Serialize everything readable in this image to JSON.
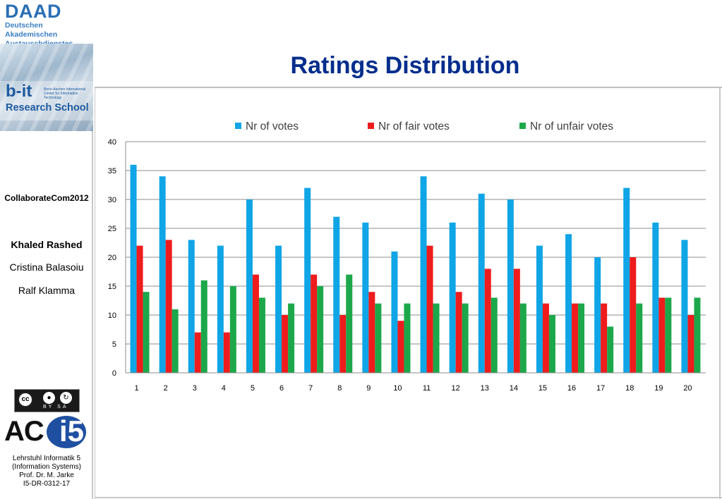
{
  "header": {
    "title": "Ratings Distribution"
  },
  "sidebar": {
    "daad_title": "DAAD",
    "daad_subtitle_1": "Deutschen Akademischen",
    "daad_subtitle_2": "Austauschdienstes",
    "bit_logo": "b-it",
    "bit_small_text": "Bonn-Aachen International Center for Information Technology",
    "research_school": "Research School",
    "conference": "CollaborateCom2012",
    "authors": [
      "Khaled Rashed",
      "Cristina Balasoiu",
      "Ralf Klamma"
    ],
    "license_logo": "cc",
    "license_label": "BY SA",
    "lab_logo_ac": "AC",
    "lab_logo_i5": "i5",
    "chair_lines": [
      "Lehrstuhl Informatik 5",
      "(Information Systems)",
      "Prof. Dr. M. Jarke",
      "I5-DR-0312-17"
    ]
  },
  "colors": {
    "title": "#002d8c",
    "series": [
      "#10a5e6",
      "#ee1c1c",
      "#1ca84a"
    ]
  },
  "chart_data": {
    "type": "bar",
    "title": "",
    "xlabel": "",
    "ylabel": "",
    "categories": [
      "1",
      "2",
      "3",
      "4",
      "5",
      "6",
      "7",
      "8",
      "9",
      "10",
      "11",
      "12",
      "13",
      "14",
      "15",
      "16",
      "17",
      "18",
      "19",
      "20"
    ],
    "series": [
      {
        "name": "Nr of votes",
        "values": [
          36,
          34,
          23,
          22,
          30,
          22,
          32,
          27,
          26,
          21,
          34,
          26,
          31,
          30,
          22,
          24,
          20,
          32,
          26,
          23
        ]
      },
      {
        "name": "Nr of fair votes",
        "values": [
          22,
          23,
          7,
          7,
          17,
          10,
          17,
          10,
          14,
          9,
          22,
          14,
          18,
          18,
          12,
          12,
          12,
          20,
          13,
          10
        ]
      },
      {
        "name": "Nr of unfair votes",
        "values": [
          14,
          11,
          16,
          15,
          13,
          12,
          15,
          17,
          12,
          12,
          12,
          12,
          13,
          12,
          10,
          12,
          8,
          12,
          13,
          13
        ]
      }
    ],
    "ylim": [
      0,
      40
    ],
    "yticks": [
      0,
      5,
      10,
      15,
      20,
      25,
      30,
      35,
      40
    ],
    "grid": true,
    "legend": "top"
  }
}
